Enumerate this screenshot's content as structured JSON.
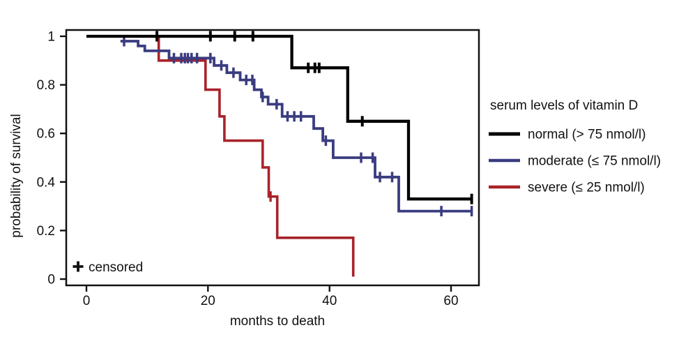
{
  "figure": {
    "background": "#ffffff",
    "text_color": "#111111"
  },
  "axes": {
    "x_label": "months to death",
    "y_label": "probability of survival",
    "x_tick_labels": [
      "0",
      "20",
      "40",
      "60"
    ],
    "x_tick_values": [
      0,
      20,
      40,
      60
    ],
    "y_tick_labels": [
      "1",
      "0.8",
      "0.6",
      "0.4",
      "0.2",
      "0"
    ],
    "y_tick_values": [
      1,
      0.8,
      0.6,
      0.4,
      0.2,
      0
    ]
  },
  "annotations": {
    "censored_label": "censored",
    "censored_symbol": "plus-icon"
  },
  "legend": {
    "title": "serum levels of vitamin D",
    "entries": [
      {
        "label": "normal (> 75 nmol/l)",
        "color": "#000000"
      },
      {
        "label": "moderate (≤ 75 nmol/l)",
        "color": "#3a3c80"
      },
      {
        "label": "severe (≤ 25 nmol/l)",
        "color": "#a8232a"
      }
    ]
  },
  "chart_data": {
    "type": "line",
    "subtype": "kaplan-meier-step",
    "title": "",
    "xlabel": "months to death",
    "ylabel": "probability of survival",
    "xlim": [
      0,
      65
    ],
    "ylim": [
      0,
      1
    ],
    "grid": false,
    "legend_position": "right",
    "censored_marker": "plus",
    "series": [
      {
        "name": "normal (> 75 nmol/l)",
        "color": "#000000",
        "steps": [
          [
            0,
            1
          ],
          [
            33.8,
            0.87
          ],
          [
            43,
            0.65
          ],
          [
            53,
            0.33
          ],
          [
            63.5,
            0.33
          ]
        ],
        "censored": [
          [
            11.6,
            1
          ],
          [
            20.4,
            1
          ],
          [
            24.4,
            1
          ],
          [
            27.4,
            1
          ],
          [
            36.5,
            0.87
          ],
          [
            37.6,
            0.87
          ],
          [
            38.3,
            0.87
          ],
          [
            45.4,
            0.65
          ],
          [
            63.4,
            0.33
          ]
        ]
      },
      {
        "name": "moderate (≤ 75 nmol/l)",
        "color": "#3a3c80",
        "steps": [
          [
            5.6,
            0.98
          ],
          [
            8.5,
            0.96
          ],
          [
            9.6,
            0.94
          ],
          [
            13.6,
            0.91
          ],
          [
            21,
            0.88
          ],
          [
            23.1,
            0.85
          ],
          [
            25.3,
            0.82
          ],
          [
            27.6,
            0.78
          ],
          [
            28.8,
            0.75
          ],
          [
            29.9,
            0.72
          ],
          [
            32.2,
            0.67
          ],
          [
            37.4,
            0.62
          ],
          [
            38.9,
            0.57
          ],
          [
            40.6,
            0.5
          ],
          [
            47.5,
            0.42
          ],
          [
            51.4,
            0.28
          ],
          [
            63.5,
            0.28
          ]
        ],
        "censored": [
          [
            6.2,
            0.98
          ],
          [
            14.4,
            0.91
          ],
          [
            15.6,
            0.91
          ],
          [
            16.2,
            0.91
          ],
          [
            16.7,
            0.91
          ],
          [
            17.3,
            0.91
          ],
          [
            18.2,
            0.91
          ],
          [
            20.4,
            0.91
          ],
          [
            22.2,
            0.88
          ],
          [
            24.2,
            0.85
          ],
          [
            26.3,
            0.82
          ],
          [
            27.3,
            0.82
          ],
          [
            29,
            0.75
          ],
          [
            31.3,
            0.72
          ],
          [
            33.1,
            0.67
          ],
          [
            34.2,
            0.67
          ],
          [
            35.3,
            0.67
          ],
          [
            39.4,
            0.57
          ],
          [
            45.2,
            0.5
          ],
          [
            47.1,
            0.5
          ],
          [
            48.3,
            0.42
          ],
          [
            50.3,
            0.42
          ],
          [
            58.4,
            0.28
          ],
          [
            63.4,
            0.28
          ]
        ]
      },
      {
        "name": "severe (≤ 25 nmol/l)",
        "color": "#a8232a",
        "steps": [
          [
            11.9,
            1
          ],
          [
            11.9,
            0.9
          ],
          [
            19.6,
            0.78
          ],
          [
            21.9,
            0.67
          ],
          [
            22.7,
            0.57
          ],
          [
            29,
            0.46
          ],
          [
            30,
            0.34
          ],
          [
            31.4,
            0.17
          ],
          [
            43.9,
            0.17
          ],
          [
            43.9,
            0.01
          ]
        ],
        "censored": [
          [
            30.3,
            0.34
          ]
        ]
      }
    ]
  }
}
